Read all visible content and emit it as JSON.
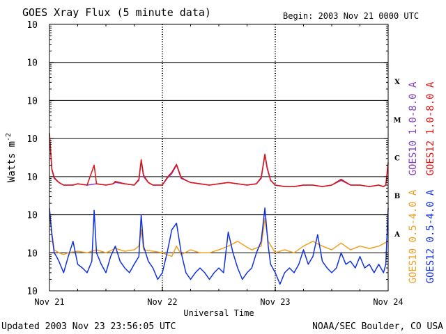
{
  "chart_data": {
    "type": "line",
    "title": "GOES Xray Flux (5 minute data)",
    "begin_label": "Begin:  2003 Nov 21 0000 UTC",
    "ylabel_text": "Watts m",
    "ylabel_exp": "-2",
    "xlabel": "Universal Time",
    "y_scale": "log",
    "ylim": [
      1e-09,
      0.01
    ],
    "y_ticks": [
      {
        "base": "10",
        "exp": "-2",
        "value": 0.01
      },
      {
        "base": "10",
        "exp": "-3",
        "value": 0.001
      },
      {
        "base": "10",
        "exp": "-4",
        "value": 0.0001
      },
      {
        "base": "10",
        "exp": "-5",
        "value": 1e-05
      },
      {
        "base": "10",
        "exp": "-6",
        "value": 1e-06
      },
      {
        "base": "10",
        "exp": "-7",
        "value": 1e-07
      },
      {
        "base": "10",
        "exp": "-8",
        "value": 1e-08
      },
      {
        "base": "10",
        "exp": "-9",
        "value": 1e-09
      }
    ],
    "xlim": [
      0,
      72
    ],
    "x_unit": "hours since 2003 Nov 21 0000 UTC",
    "x_ticks": [
      {
        "label": "Nov 21",
        "x": 0
      },
      {
        "label": "Nov 22",
        "x": 24
      },
      {
        "label": "Nov 23",
        "x": 48
      },
      {
        "label": "Nov 24",
        "x": 72
      }
    ],
    "flare_classes": [
      {
        "label": "X",
        "value": 0.0001
      },
      {
        "label": "M",
        "value": 1e-05
      },
      {
        "label": "C",
        "value": 1e-06
      },
      {
        "label": "B",
        "value": 1e-07
      },
      {
        "label": "A",
        "value": 1e-08
      }
    ],
    "grid": "horizontal lines at each decade from 1e-8 to 1e-3",
    "legend_placement": "right",
    "series": [
      {
        "name": "GOES10 1.0-8.0 A",
        "color": "#7f3fbf",
        "x": [
          0,
          0.5,
          1,
          2,
          3,
          5,
          6,
          8,
          10,
          12,
          13.5,
          14,
          16,
          18,
          19,
          19.5,
          20,
          21,
          22,
          24,
          25,
          26,
          27,
          28,
          29,
          30,
          32,
          34,
          36,
          38,
          40,
          42,
          44,
          45,
          45.8,
          46.3,
          47,
          48,
          50,
          52,
          54,
          56,
          58,
          60,
          62,
          64,
          66,
          68,
          70,
          71,
          71.5,
          72
        ],
        "y": [
          1.3e-05,
          1.5e-06,
          9e-07,
          7e-07,
          6e-07,
          6e-07,
          6.5e-07,
          6e-07,
          6.5e-07,
          6e-07,
          6.5e-07,
          7e-07,
          6.5e-07,
          6e-07,
          8e-07,
          2.6e-06,
          1e-06,
          7e-07,
          6e-07,
          6e-07,
          9e-07,
          1.2e-06,
          2e-06,
          9e-07,
          8e-07,
          7e-07,
          6.5e-07,
          6e-07,
          6.5e-07,
          7e-07,
          6.5e-07,
          6e-07,
          6.5e-07,
          9e-07,
          3.7e-06,
          1.6e-06,
          8e-07,
          6e-07,
          5.5e-07,
          5.5e-07,
          6e-07,
          6e-07,
          5.5e-07,
          6e-07,
          8e-07,
          6e-07,
          6e-07,
          5.5e-07,
          6e-07,
          5.5e-07,
          6e-07,
          2.2e-06
        ]
      },
      {
        "name": "GOES12 1.0-8.0 A",
        "color": "#e01010",
        "x": [
          0,
          0.5,
          1,
          2,
          3,
          5,
          6,
          8,
          9.5,
          10,
          12,
          13.5,
          14,
          16,
          18,
          19,
          19.5,
          20,
          21,
          22,
          24,
          25,
          26,
          27,
          28,
          29,
          30,
          32,
          34,
          36,
          38,
          40,
          42,
          44,
          45,
          45.8,
          46.3,
          47,
          48,
          50,
          52,
          54,
          56,
          58,
          60,
          62,
          64,
          66,
          68,
          70,
          71,
          71.5,
          72
        ],
        "y": [
          1.4e-05,
          1.6e-06,
          9.5e-07,
          7e-07,
          6e-07,
          6e-07,
          6.5e-07,
          6e-07,
          2e-06,
          6.5e-07,
          6e-07,
          6.5e-07,
          7.5e-07,
          6.5e-07,
          6e-07,
          8.5e-07,
          2.8e-06,
          1.1e-06,
          7e-07,
          6e-07,
          6e-07,
          9.5e-07,
          1.3e-06,
          2.1e-06,
          9.5e-07,
          8e-07,
          7e-07,
          6.5e-07,
          6e-07,
          6.5e-07,
          7e-07,
          6.5e-07,
          6e-07,
          6.5e-07,
          9.5e-07,
          3.9e-06,
          1.7e-06,
          8e-07,
          6e-07,
          5.5e-07,
          5.5e-07,
          6e-07,
          6e-07,
          5.5e-07,
          6e-07,
          8.5e-07,
          6e-07,
          6e-07,
          5.5e-07,
          6e-07,
          5.5e-07,
          6e-07,
          2.4e-06
        ]
      },
      {
        "name": "GOES10 0.5-4.0 A",
        "color": "#f0a020",
        "x": [
          0,
          1,
          2,
          3,
          4,
          6,
          8,
          10,
          12,
          14,
          16,
          18,
          19,
          19.5,
          20,
          22,
          24,
          26,
          27,
          28,
          30,
          32,
          34,
          36,
          38,
          40,
          42,
          43,
          45,
          45.8,
          46.5,
          48,
          50,
          52,
          54,
          56,
          58,
          60,
          62,
          64,
          66,
          68,
          70,
          72
        ],
        "y": [
          1e-07,
          1.2e-08,
          1e-08,
          9e-09,
          1e-08,
          1.1e-08,
          1e-08,
          1.2e-08,
          1e-08,
          1.3e-08,
          1.1e-08,
          1.2e-08,
          1.5e-08,
          4e-08,
          1.2e-08,
          1.1e-08,
          1e-08,
          8e-09,
          1.5e-08,
          9e-09,
          1.2e-08,
          1e-08,
          1e-08,
          1.2e-08,
          1.5e-08,
          2e-08,
          1.4e-08,
          1.2e-08,
          1.5e-08,
          8e-08,
          2e-08,
          1e-08,
          1.2e-08,
          1e-08,
          1.5e-08,
          2e-08,
          1.5e-08,
          1.2e-08,
          1.8e-08,
          1.2e-08,
          1.5e-08,
          1.3e-08,
          1.5e-08,
          2e-08
        ]
      },
      {
        "name": "GOES12 0.5-4.0 A",
        "color": "#1030e0",
        "x": [
          0,
          0.5,
          1,
          1.5,
          2,
          3,
          4,
          5,
          6,
          7,
          8,
          9,
          9.5,
          10,
          11,
          12,
          13,
          14,
          15,
          16,
          17,
          18,
          19,
          19.5,
          20,
          21,
          22,
          23,
          24,
          25,
          26,
          27,
          28,
          29,
          30,
          31,
          32,
          33,
          34,
          35,
          36,
          37,
          38,
          39,
          40,
          41,
          42,
          43,
          44,
          45,
          45.8,
          46.5,
          47,
          48,
          49,
          50,
          51,
          52,
          53,
          54,
          55,
          56,
          57,
          58,
          59,
          60,
          61,
          62,
          63,
          64,
          65,
          66,
          67,
          68,
          69,
          70,
          71,
          71.5,
          72
        ],
        "y": [
          1.5e-07,
          3e-08,
          1e-08,
          8e-09,
          6e-09,
          3e-09,
          8e-09,
          2e-08,
          5e-09,
          4e-09,
          3e-09,
          6e-09,
          1.3e-07,
          1e-08,
          5e-09,
          3e-09,
          8e-09,
          1.5e-08,
          6e-09,
          4e-09,
          3e-09,
          5e-09,
          8e-09,
          1e-07,
          1.5e-08,
          6e-09,
          4e-09,
          2e-09,
          3e-09,
          1e-08,
          4e-08,
          6e-08,
          1e-08,
          3e-09,
          2e-09,
          3e-09,
          4e-09,
          3e-09,
          2e-09,
          3e-09,
          4e-09,
          3e-09,
          3.5e-08,
          1e-08,
          4e-09,
          2e-09,
          3e-09,
          4e-09,
          1e-08,
          2e-08,
          1.5e-07,
          1.5e-08,
          5e-09,
          3e-09,
          1.5e-09,
          3e-09,
          4e-09,
          3e-09,
          5e-09,
          1.2e-08,
          5e-09,
          8e-09,
          3e-08,
          6e-09,
          4e-09,
          3e-09,
          4e-09,
          1e-08,
          5e-09,
          6e-09,
          4e-09,
          8e-09,
          4e-09,
          5e-09,
          3e-09,
          5e-09,
          3e-09,
          5e-09,
          1.5e-07
        ]
      }
    ]
  },
  "footer": {
    "updated": "Updated 2003 Nov 23 23:56:05 UTC",
    "source": "NOAA/SEC Boulder, CO USA"
  }
}
